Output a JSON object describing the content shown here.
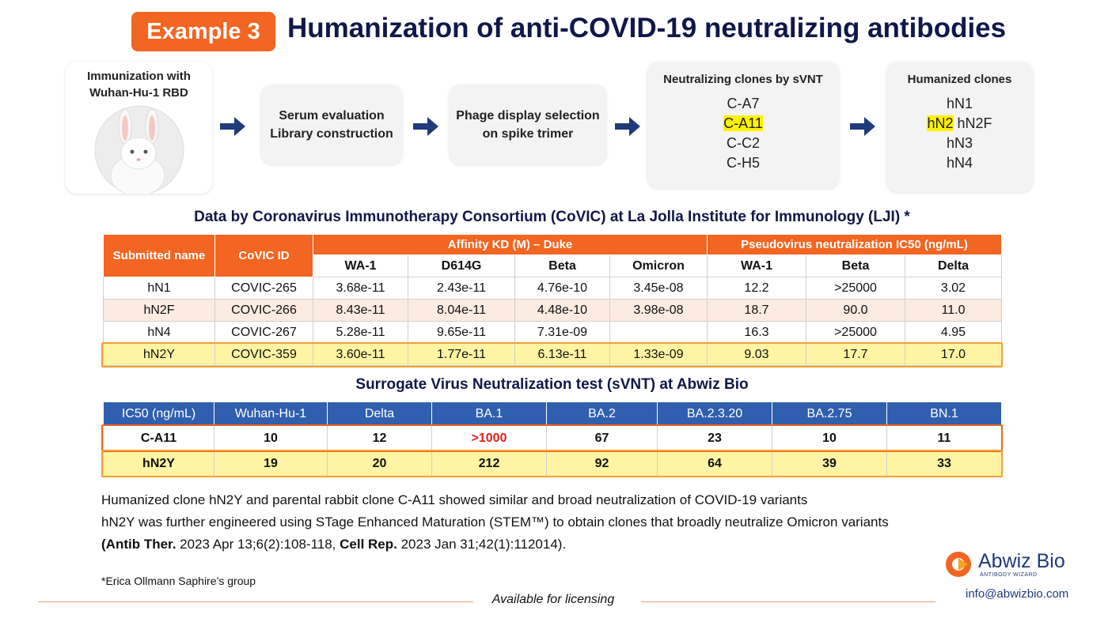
{
  "header": {
    "badge": "Example 3",
    "title": "Humanization of anti-COVID-19 neutralizing antibodies"
  },
  "workflow": {
    "steps": [
      {
        "lines": [
          "Immunization with",
          "Wuhan-Hu-1 RBD"
        ]
      },
      {
        "lines": [
          "Serum evaluation",
          "Library construction"
        ]
      },
      {
        "lines": [
          "Phage display selection",
          "on spike trimer"
        ]
      },
      {
        "title": "Neutralizing clones by sVNT",
        "items": [
          "C-A7",
          "C-A11",
          "C-C2",
          "C-H5"
        ]
      },
      {
        "title": "Humanized clones",
        "items": [
          "hN1",
          "hN2",
          "hN2F",
          "hN3",
          "hN4"
        ]
      }
    ]
  },
  "lji_table": {
    "title": "Data by Coronavirus Immunotherapy Consortium (CoVIC) at La Jolla Institute for Immunology (LJI) *",
    "header_groups": [
      {
        "label": "Submitted name"
      },
      {
        "label": "CoVIC ID"
      },
      {
        "label": "Affinity KD (M) – Duke",
        "columns": [
          "WA-1",
          "D614G",
          "Beta",
          "Omicron"
        ]
      },
      {
        "label": "Pseudovirus neutralization IC50 (ng/mL)",
        "columns": [
          "WA-1",
          "Beta",
          "Delta"
        ]
      }
    ],
    "rows": [
      [
        "hN1",
        "COVIC-265",
        "3.68e-11",
        "2.43e-11",
        "4.76e-10",
        "3.45e-08",
        "12.2",
        ">25000",
        "3.02"
      ],
      [
        "hN2F",
        "COVIC-266",
        "8.43e-11",
        "8.04e-11",
        "4.48e-10",
        "3.98e-08",
        "18.7",
        "90.0",
        "11.0"
      ],
      [
        "hN4",
        "COVIC-267",
        "5.28e-11",
        "9.65e-11",
        "7.31e-09",
        null,
        "16.3",
        ">25000",
        "4.95"
      ],
      [
        "hN2Y",
        "COVIC-359",
        "3.60e-11",
        "1.77e-11",
        "6.13e-11",
        "1.33e-09",
        "9.03",
        "17.7",
        "17.0"
      ]
    ]
  },
  "svnt_table": {
    "title": "Surrogate Virus Neutralization test (sVNT) at Abwiz Bio",
    "columns": [
      "IC50 (ng/mL)",
      "Wuhan-Hu-1",
      "Delta",
      "BA.1",
      "BA.2",
      "BA.2.3.20",
      "BA.2.75",
      "BN.1"
    ],
    "rows": [
      [
        "C-A11",
        10,
        12,
        ">1000",
        67,
        23,
        10,
        11
      ],
      [
        "hN2Y",
        19,
        20,
        212,
        92,
        64,
        39,
        33
      ]
    ]
  },
  "notes": {
    "line1": "Humanized clone hN2Y and parental rabbit clone C-A11 showed similar and broad neutralization of COVID-19 variants",
    "line2": "hN2Y was further engineered using STage Enhanced Maturation (STEM™) to obtain clones that broadly neutralize Omicron variants",
    "line3": [
      "(Antib Ther.",
      " 2023 Apr 13;6(2):108-118, ",
      "Cell Rep.",
      " 2023 Jan 31;42(1):112014)."
    ]
  },
  "footer": {
    "footnote": "*Erica Ollmann Saphire’s group",
    "licensing": "Available for licensing",
    "logo_name": "Abwiz Bio",
    "logo_tagline": "ANTIBODY WIZARD",
    "email": "info@abwizbio.com"
  }
}
